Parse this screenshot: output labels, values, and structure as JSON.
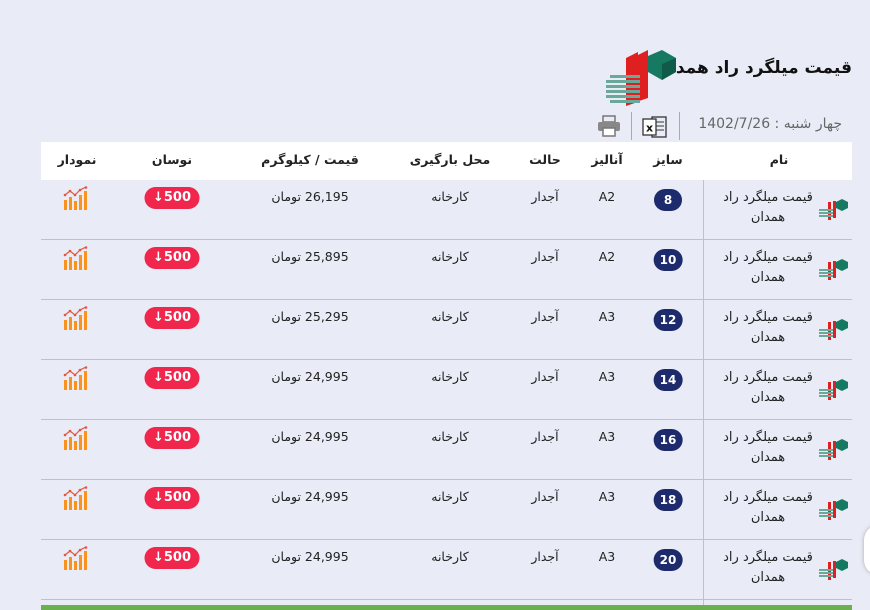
{
  "header": {
    "title": "قیمت میلگرد راد همدان",
    "date": "چهار شنبه : 1402/7/26",
    "excel_icon": "excel-icon",
    "print_icon": "printer-icon"
  },
  "table": {
    "columns": [
      "نام",
      "سایز",
      "آنالیز",
      "حالت",
      "محل بارگیری",
      "قیمت / کیلوگرم",
      "نوسان",
      "نمودار"
    ],
    "rows": [
      {
        "name": "قیمت میلگرد راد همدان",
        "size": "8",
        "analysis": "A2",
        "state": "آجدار",
        "location": "کارخانه",
        "price": "26,195 تومان",
        "change": "500"
      },
      {
        "name": "قیمت میلگرد راد همدان",
        "size": "10",
        "analysis": "A2",
        "state": "آجدار",
        "location": "کارخانه",
        "price": "25,895 تومان",
        "change": "500"
      },
      {
        "name": "قیمت میلگرد راد همدان",
        "size": "12",
        "analysis": "A3",
        "state": "آجدار",
        "location": "کارخانه",
        "price": "25,295 تومان",
        "change": "500"
      },
      {
        "name": "قیمت میلگرد راد همدان",
        "size": "14",
        "analysis": "A3",
        "state": "آجدار",
        "location": "کارخانه",
        "price": "24,995 تومان",
        "change": "500"
      },
      {
        "name": "قیمت میلگرد راد همدان",
        "size": "16",
        "analysis": "A3",
        "state": "آجدار",
        "location": "کارخانه",
        "price": "24,995 تومان",
        "change": "500"
      },
      {
        "name": "قیمت میلگرد راد همدان",
        "size": "18",
        "analysis": "A3",
        "state": "آجدار",
        "location": "کارخانه",
        "price": "24,995 تومان",
        "change": "500"
      },
      {
        "name": "قیمت میلگرد راد همدان",
        "size": "20",
        "analysis": "A3",
        "state": "آجدار",
        "location": "کارخانه",
        "price": "24,995 تومان",
        "change": "500"
      }
    ]
  },
  "colors": {
    "badge": "#f0264c",
    "size_pill": "#1d2a6b",
    "chart_icon": "#f7931e",
    "background": "#e9ecf6"
  }
}
